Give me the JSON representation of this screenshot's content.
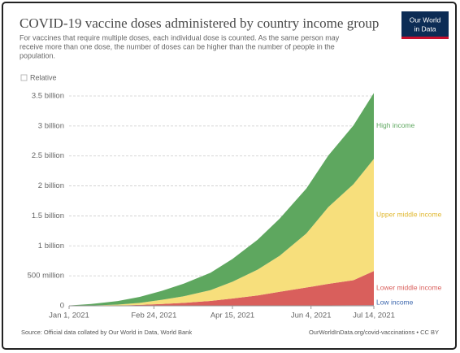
{
  "chart_data": {
    "type": "stacked-area",
    "title": "COVID-19 vaccine doses administered by country income group",
    "subtitle": [
      "For vaccines that require multiple doses, each individual dose is counted. As the same person may",
      "receive more than one dose, the number of doses can be higher than the number of people in the",
      "population."
    ],
    "logo": [
      "Our World",
      "in Data"
    ],
    "toggle": "Relative",
    "source": "Source: Official data collated by Our World in Data, World Bank",
    "credit": "OurWorldInData.org/covid-vaccinations • CC BY",
    "x": [
      "2021-01-01",
      "2021-01-15",
      "2021-02-01",
      "2021-02-15",
      "2021-03-01",
      "2021-03-15",
      "2021-04-01",
      "2021-04-15",
      "2021-05-01",
      "2021-05-15",
      "2021-06-01",
      "2021-06-15",
      "2021-07-01",
      "2021-07-14"
    ],
    "xlim": [
      "2021-01-01",
      "2021-07-14"
    ],
    "xticks": [
      {
        "value": "2021-01-01",
        "label": "Jan 1, 2021"
      },
      {
        "value": "2021-02-24",
        "label": "Feb 24, 2021"
      },
      {
        "value": "2021-04-15",
        "label": "Apr 15, 2021"
      },
      {
        "value": "2021-06-04",
        "label": "Jun 4, 2021"
      },
      {
        "value": "2021-07-14",
        "label": "Jul 14, 2021"
      }
    ],
    "ylim": [
      0,
      3500000000.0
    ],
    "yticks": [
      0,
      {
        "value": 500000000.0,
        "label": "500 million"
      },
      {
        "value": 1000000000.0,
        "label": "1 billion"
      },
      {
        "value": 1500000000.0,
        "label": "1.5 billion"
      },
      {
        "value": 2000000000.0,
        "label": "2 billion"
      },
      {
        "value": 2500000000.0,
        "label": "2.5 billion"
      },
      {
        "value": 3000000000.0,
        "label": "3 billion"
      },
      {
        "value": 3500000000.0,
        "label": "3.5 billion"
      }
    ],
    "grid": true,
    "series": [
      {
        "name": "Low income",
        "color": "#3b66ad",
        "values": [
          0,
          0,
          0,
          0,
          0,
          0,
          1000000.0,
          2000000.0,
          3000000.0,
          4000000.0,
          5000000.0,
          6000000.0,
          8000000.0,
          10000000.0
        ]
      },
      {
        "name": "Lower middle income",
        "color": "#d95f5c",
        "values": [
          0,
          1000000.0,
          5000000.0,
          15000000.0,
          30000000.0,
          50000000.0,
          80000000.0,
          120000000.0,
          170000000.0,
          230000000.0,
          300000000.0,
          360000000.0,
          420000000.0,
          570000000.0
        ]
      },
      {
        "name": "Upper middle income",
        "color": "#f7df7c",
        "values": [
          1000000.0,
          4000000.0,
          15000000.0,
          35000000.0,
          70000000.0,
          110000000.0,
          180000000.0,
          280000000.0,
          430000000.0,
          600000000.0,
          900000000.0,
          1280000000.0,
          1600000000.0,
          1870000000.0
        ]
      },
      {
        "name": "High income",
        "color": "#5ea75f",
        "values": [
          4000000.0,
          25000000.0,
          60000000.0,
          100000000.0,
          150000000.0,
          210000000.0,
          290000000.0,
          380000000.0,
          500000000.0,
          620000000.0,
          750000000.0,
          860000000.0,
          980000000.0,
          1100000000.0
        ]
      }
    ]
  }
}
